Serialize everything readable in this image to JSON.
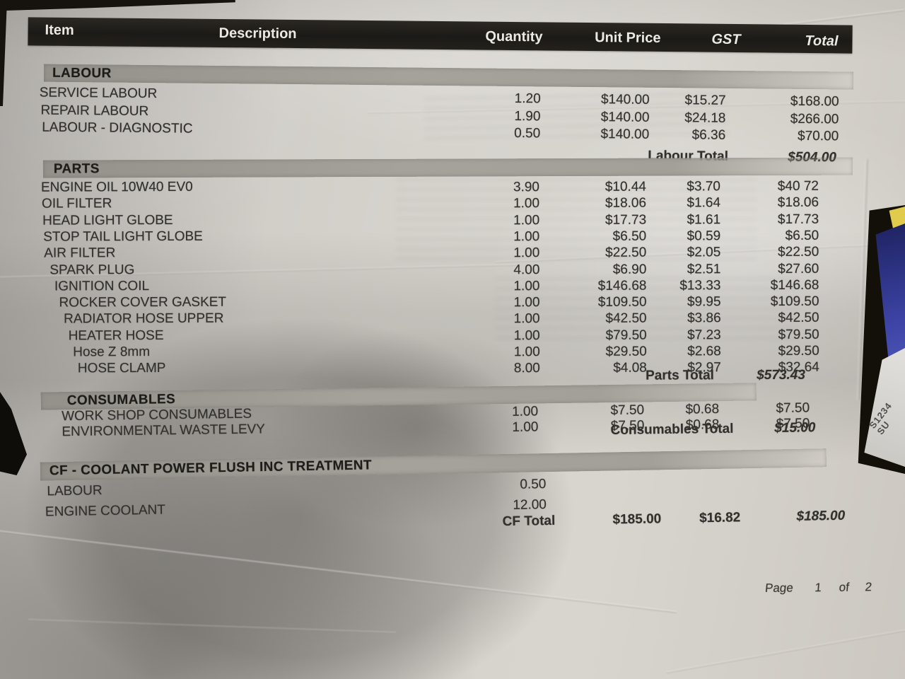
{
  "colors": {
    "photo_background": "#15120e",
    "paper": "#d2cfca",
    "ink": "#32302c",
    "header_bar": "#211e1a",
    "header_text": "#ece9e3",
    "section_bar": "#a09d97",
    "navy_object": "#2b3082",
    "yellow_object": "#ddc94e"
  },
  "table": {
    "columns": [
      "Item",
      "Description",
      "Quantity",
      "Unit Price",
      "GST",
      "Total"
    ],
    "sections": [
      {
        "title": "LABOUR",
        "rows": [
          {
            "item": "SERVICE LABOUR",
            "qty": "1.20",
            "unit_price": "$140.00",
            "gst": "$15.27",
            "total": "$168.00"
          },
          {
            "item": "REPAIR LABOUR",
            "qty": "1.90",
            "unit_price": "$140.00",
            "gst": "$24.18",
            "total": "$266.00"
          },
          {
            "item": "LABOUR - DIAGNOSTIC",
            "qty": "0.50",
            "unit_price": "$140.00",
            "gst": "$6.36",
            "total": "$70.00"
          }
        ],
        "total_label": "Labour Total",
        "total_value": "$504.00"
      },
      {
        "title": "PARTS",
        "rows": [
          {
            "item": "ENGINE OIL 10W40 EV0",
            "qty": "3.90",
            "unit_price": "$10.44",
            "gst": "$3.70",
            "total": "$40 72"
          },
          {
            "item": "OIL FILTER",
            "qty": "1.00",
            "unit_price": "$18.06",
            "gst": "$1.64",
            "total": "$18.06"
          },
          {
            "item": "HEAD LIGHT GLOBE",
            "qty": "1.00",
            "unit_price": "$17.73",
            "gst": "$1.61",
            "total": "$17.73"
          },
          {
            "item": "STOP TAIL LIGHT GLOBE",
            "qty": "1.00",
            "unit_price": "$6.50",
            "gst": "$0.59",
            "total": "$6.50"
          },
          {
            "item": "AIR FILTER",
            "qty": "1.00",
            "unit_price": "$22.50",
            "gst": "$2.05",
            "total": "$22.50"
          },
          {
            "item": "SPARK PLUG",
            "qty": "4.00",
            "unit_price": "$6.90",
            "gst": "$2.51",
            "total": "$27.60"
          },
          {
            "item": "IGNITION COIL",
            "qty": "1.00",
            "unit_price": "$146.68",
            "gst": "$13.33",
            "total": "$146.68"
          },
          {
            "item": "ROCKER COVER GASKET",
            "qty": "1.00",
            "unit_price": "$109.50",
            "gst": "$9.95",
            "total": "$109.50"
          },
          {
            "item": "RADIATOR HOSE UPPER",
            "qty": "1.00",
            "unit_price": "$42.50",
            "gst": "$3.86",
            "total": "$42.50"
          },
          {
            "item": "HEATER HOSE",
            "qty": "1.00",
            "unit_price": "$79.50",
            "gst": "$7.23",
            "total": "$79.50"
          },
          {
            "item": "Hose Z 8mm",
            "qty": "1.00",
            "unit_price": "$29.50",
            "gst": "$2.68",
            "total": "$29.50"
          },
          {
            "item": "HOSE CLAMP",
            "qty": "8.00",
            "unit_price": "$4.08",
            "gst": "$2.97",
            "total": "$32.64"
          }
        ],
        "total_label": "Parts Total",
        "total_value": "$573.43"
      },
      {
        "title": "CONSUMABLES",
        "rows": [
          {
            "item": "WORK SHOP CONSUMABLES",
            "qty": "1.00",
            "unit_price": "$7.50",
            "gst": "$0.68",
            "total": "$7.50"
          },
          {
            "item": "ENVIRONMENTAL WASTE LEVY",
            "qty": "1.00",
            "unit_price": "$7.50",
            "gst": "$0.68",
            "total": "$7.50"
          }
        ],
        "total_label": "Consumables Total",
        "total_value": "$15.00"
      },
      {
        "title": "CF - COOLANT POWER FLUSH INC TREATMENT",
        "rows": [
          {
            "item": "LABOUR",
            "qty": "0.50"
          },
          {
            "item": "ENGINE COOLANT",
            "qty": "12.00"
          }
        ],
        "total_label": "CF Total",
        "total_unit_price": "$185.00",
        "total_gst": "$16.82",
        "total_value": "$185.00"
      }
    ]
  },
  "footer": {
    "page_word": "Page",
    "page_number": "1",
    "of_word": "of",
    "page_total": "2"
  },
  "side_tag": {
    "line1": "S1234",
    "line2": "SU"
  }
}
